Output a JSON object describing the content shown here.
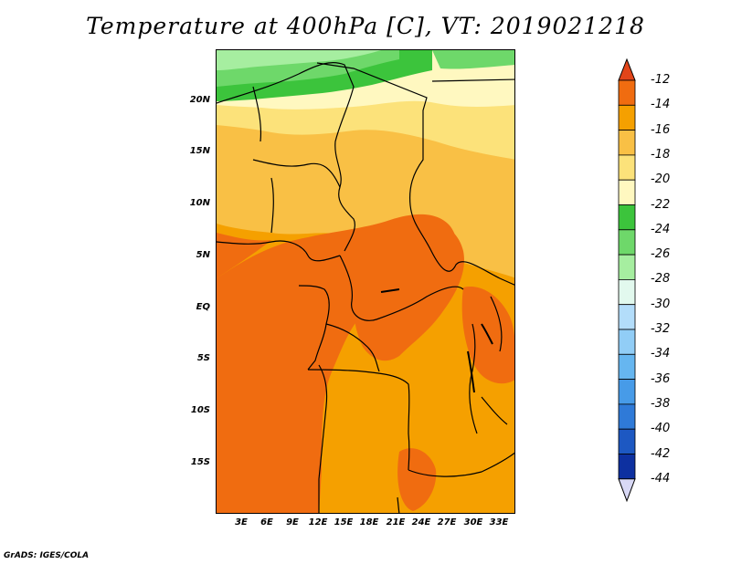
{
  "title": "Temperature at 400hPa [C], VT: 2019021218",
  "credit": "GrADS: IGES/COLA",
  "map": {
    "lat_labels": [
      "20N",
      "15N",
      "10N",
      "5N",
      "EQ",
      "5S",
      "10S",
      "15S"
    ],
    "lon_labels": [
      "3E",
      "6E",
      "9E",
      "12E",
      "15E",
      "18E",
      "21E",
      "24E",
      "27E",
      "30E",
      "33E"
    ]
  },
  "colorbar": {
    "labels": [
      "-12",
      "-14",
      "-16",
      "-18",
      "-20",
      "-22",
      "-24",
      "-26",
      "-28",
      "-30",
      "-32",
      "-34",
      "-36",
      "-38",
      "-40",
      "-42",
      "-44"
    ],
    "colors": [
      "#e2451a",
      "#f06c10",
      "#f5a000",
      "#f9c045",
      "#fce27a",
      "#fff8c0",
      "#3cc43c",
      "#6ed86a",
      "#a6eea0",
      "#e2f9ee",
      "#b3ddfa",
      "#91cdf6",
      "#66b6f0",
      "#479be8",
      "#2f7ad8",
      "#1d58c2",
      "#0d30a0",
      "#0a0a6e"
    ],
    "top_color": "#e2451a",
    "bottom_color": "#d8d8f5"
  }
}
